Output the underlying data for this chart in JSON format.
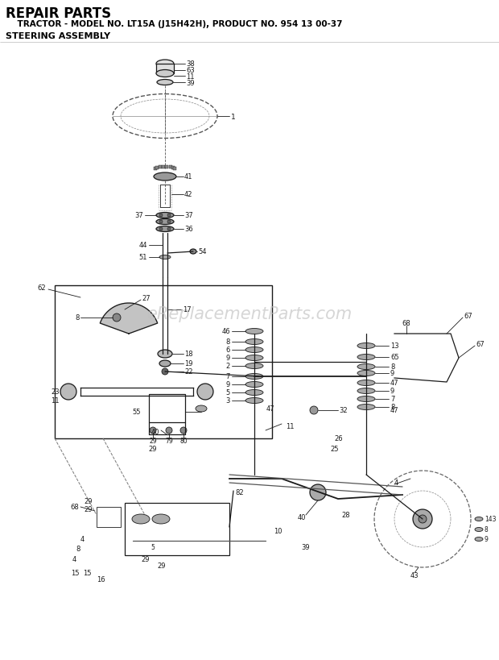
{
  "title_line1": "REPAIR PARTS",
  "title_line2": "    TRACTOR - MODEL NO. LT15A (J15H42H), PRODUCT NO. 954 13 00-37",
  "title_line3": "STEERING ASSEMBLY",
  "watermark": "eReplacementParts.com",
  "bg_color": "#ffffff",
  "diagram_color": "#1a1a1a",
  "watermark_color": "#c0c0c0",
  "fig_width": 6.2,
  "fig_height": 8.2,
  "dpi": 100
}
